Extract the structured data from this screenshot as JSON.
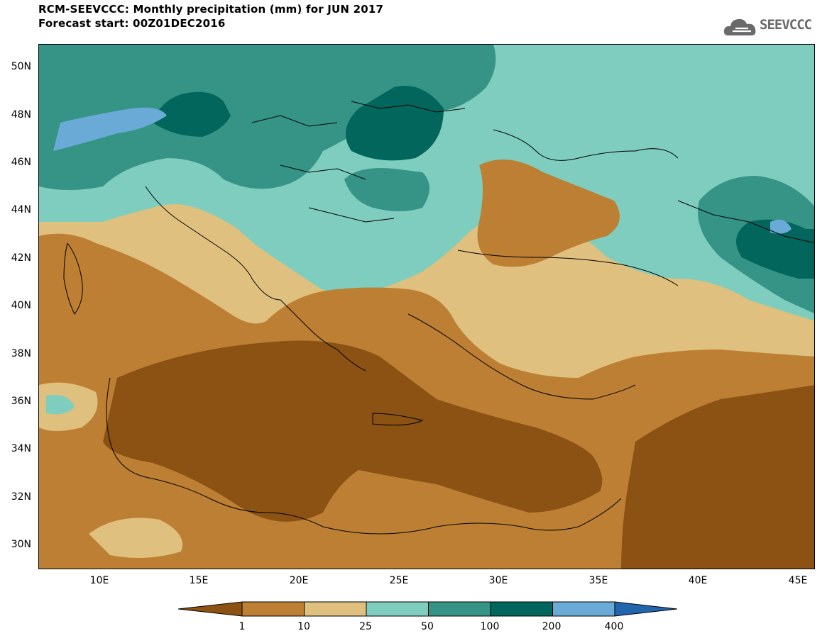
{
  "header": {
    "title": "RCM-SEEVCCC: Monthly precipitation (mm) for JUN 2017",
    "subtitle": "Forecast start: 00Z01DEC2016",
    "logo_text": "SEEVCCC"
  },
  "map": {
    "lat_labels": [
      "50N",
      "48N",
      "46N",
      "44N",
      "42N",
      "40N",
      "38N",
      "36N",
      "34N",
      "32N",
      "30N"
    ],
    "lon_labels": [
      "10E",
      "15E",
      "20E",
      "25E",
      "30E",
      "35E",
      "40E",
      "45E"
    ]
  },
  "colorbar": {
    "labels": [
      "1",
      "10",
      "25",
      "50",
      "100",
      "200",
      "400"
    ],
    "colors": [
      "#8b5214",
      "#bd7f33",
      "#dfc07e",
      "#7fcdbe",
      "#369487",
      "#02665c",
      "#6aaad6",
      "#2166ac"
    ]
  }
}
